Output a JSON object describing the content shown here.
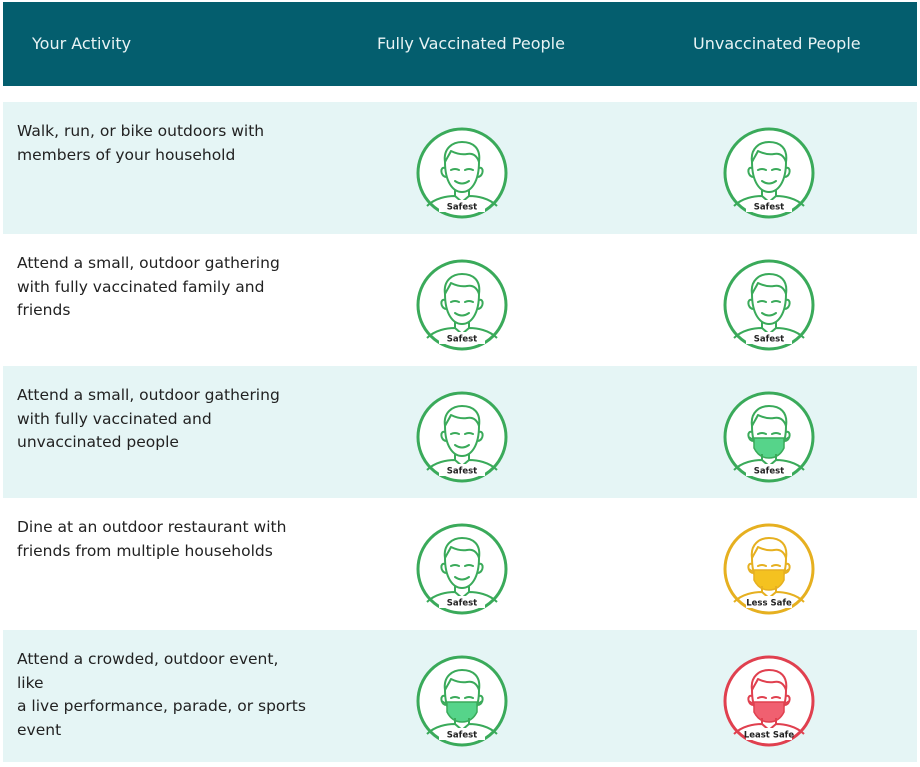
{
  "header": {
    "col_activity": "Your Activity",
    "col_vaccinated": "Fully Vaccinated People",
    "col_unvaccinated": "Unvaccinated People"
  },
  "colors": {
    "header_bg": "#045e6e",
    "safest": "#3aaa5a",
    "less_safe": "#e6b020",
    "least_safe": "#e0404f",
    "row_shaded": "#e5f5f5"
  },
  "rows": [
    {
      "activity": "Walk, run, or bike outdoors with members of your household",
      "vaccinated": {
        "label": "Safest",
        "icon": "face-no-mask-icon",
        "level": "safest"
      },
      "unvaccinated": {
        "label": "Safest",
        "icon": "face-no-mask-icon",
        "level": "safest"
      }
    },
    {
      "activity": "Attend a small, outdoor gathering with fully vaccinated family and friends",
      "vaccinated": {
        "label": "Safest",
        "icon": "face-no-mask-icon",
        "level": "safest"
      },
      "unvaccinated": {
        "label": "Safest",
        "icon": "face-no-mask-icon",
        "level": "safest"
      }
    },
    {
      "activity": "Attend a small, outdoor gathering with fully vaccinated and unvaccinated people",
      "vaccinated": {
        "label": "Safest",
        "icon": "face-no-mask-icon",
        "level": "safest"
      },
      "unvaccinated": {
        "label": "Safest",
        "icon": "face-mask-icon",
        "level": "safest"
      }
    },
    {
      "activity": "Dine at an outdoor restaurant with friends from multiple households",
      "vaccinated": {
        "label": "Safest",
        "icon": "face-no-mask-icon",
        "level": "safest"
      },
      "unvaccinated": {
        "label": "Less Safe",
        "icon": "face-mask-icon",
        "level": "less_safe"
      }
    },
    {
      "activity": "Attend a crowded, outdoor event, like a live performance, parade, or sports event",
      "vaccinated": {
        "label": "Safest",
        "icon": "face-mask-icon",
        "level": "safest"
      },
      "unvaccinated": {
        "label": "Least Safe",
        "icon": "face-mask-icon",
        "level": "least_safe"
      }
    }
  ]
}
